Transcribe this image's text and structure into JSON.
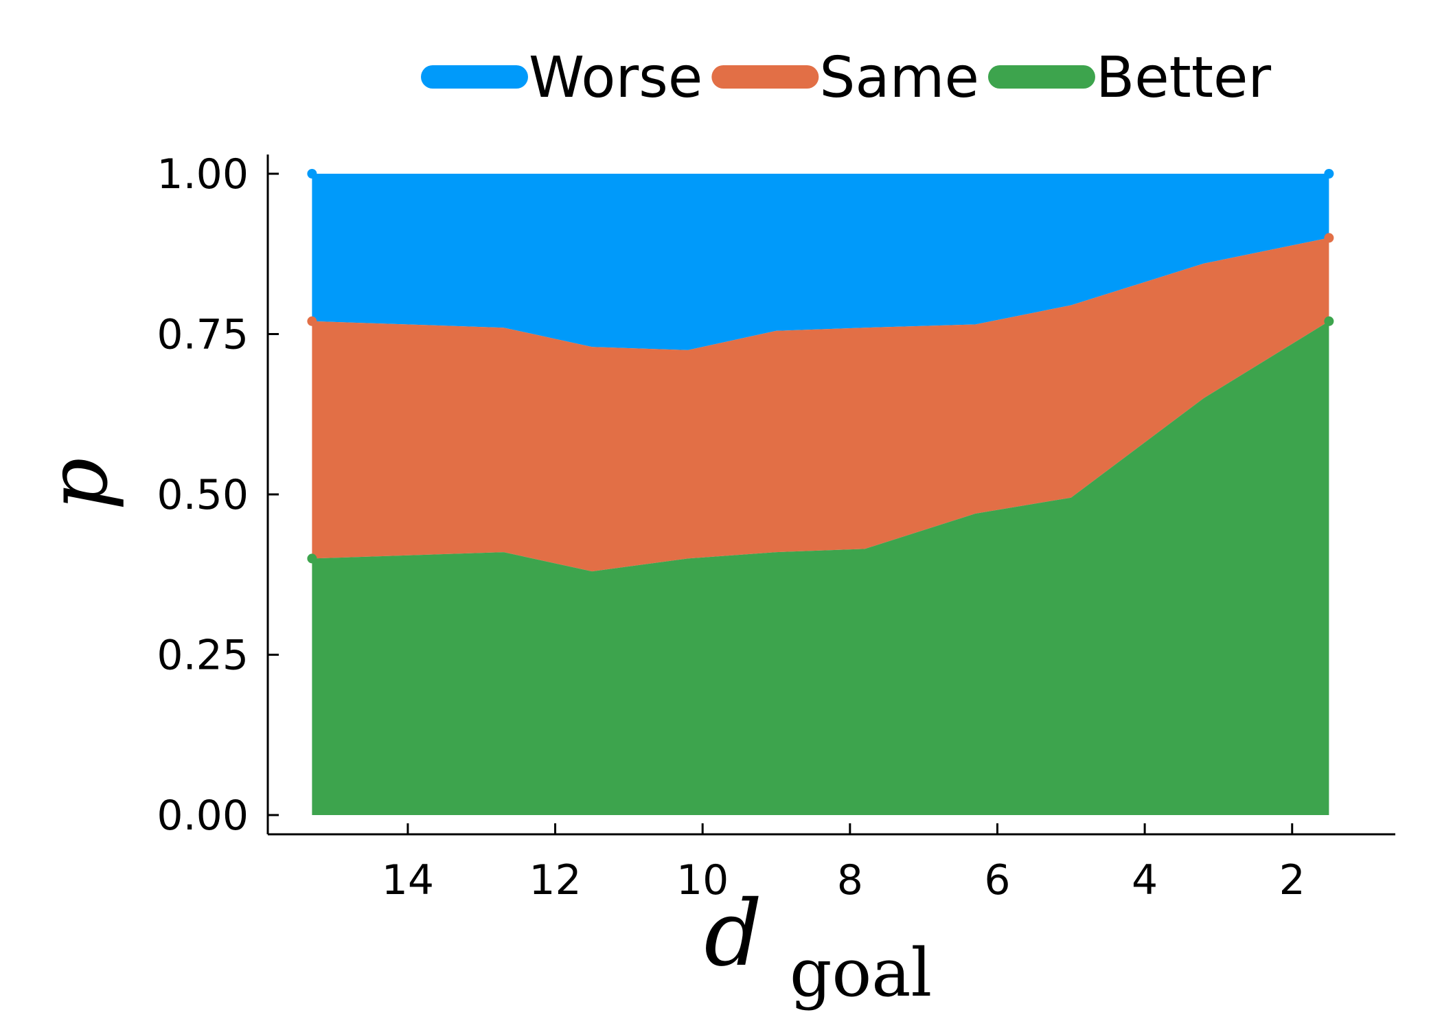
{
  "chart_data": {
    "type": "area",
    "stacked": true,
    "xlabel": "d",
    "xlabel_subscript": "goal",
    "ylabel": "p",
    "x_reversed": true,
    "xlim": [
      15.9,
      0.6
    ],
    "ylim": [
      -0.03,
      1.03
    ],
    "xticks": [
      14,
      12,
      10,
      8,
      6,
      4,
      2
    ],
    "yticks": [
      "0.00",
      "0.25",
      "0.50",
      "0.75",
      "1.00"
    ],
    "ytick_values": [
      0,
      0.25,
      0.5,
      0.75,
      1.0
    ],
    "grid": false,
    "legend_position": "top",
    "x": [
      15.3,
      12.7,
      11.5,
      10.2,
      9.0,
      7.8,
      6.3,
      5.0,
      3.2,
      1.5
    ],
    "series": [
      {
        "name": "Better",
        "color": "#3da44d",
        "values": [
          0.4,
          0.41,
          0.38,
          0.4,
          0.41,
          0.415,
          0.47,
          0.495,
          0.65,
          0.77
        ]
      },
      {
        "name": "Same",
        "color": "#e26f46",
        "values": [
          0.37,
          0.35,
          0.35,
          0.325,
          0.345,
          0.345,
          0.295,
          0.3,
          0.21,
          0.13
        ]
      },
      {
        "name": "Worse",
        "color": "#009afa",
        "values": [
          0.23,
          0.24,
          0.27,
          0.275,
          0.245,
          0.24,
          0.235,
          0.205,
          0.14,
          0.1
        ]
      }
    ],
    "legend": [
      {
        "label": "Worse",
        "color": "#009afa"
      },
      {
        "label": "Same",
        "color": "#e26f46"
      },
      {
        "label": "Better",
        "color": "#3da44d"
      }
    ]
  }
}
